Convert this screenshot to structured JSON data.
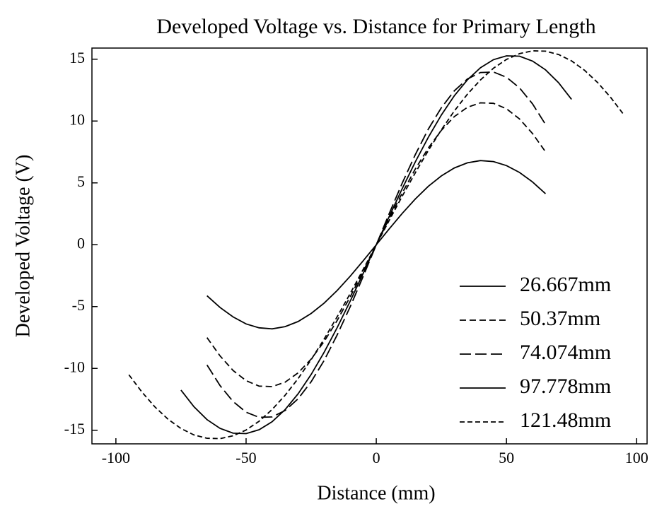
{
  "chart_data": {
    "type": "line",
    "title": "Developed Voltage vs. Distance for Primary Length",
    "xlabel": "Distance (mm)",
    "ylabel": "Developed Voltage (V)",
    "xlim": [
      -109.2,
      104
    ],
    "ylim": [
      -16.1,
      15.9
    ],
    "xticks": [
      -100,
      -50,
      0,
      50,
      100
    ],
    "yticks": [
      -15,
      -10,
      -5,
      0,
      5,
      10,
      15
    ],
    "grid": false,
    "legend": "lower right",
    "series": [
      {
        "name": "26.667mm",
        "color": "#000000",
        "dash": "none",
        "x": [
          -65,
          -60,
          -55,
          -50,
          -45,
          -40,
          -35,
          -30,
          -25,
          -20,
          -15,
          -10,
          -5,
          0,
          5,
          10,
          15,
          20,
          25,
          30,
          35,
          40,
          45,
          50,
          55,
          60,
          65
        ],
        "values": [
          -4.12,
          -5.08,
          -5.84,
          -6.4,
          -6.72,
          -6.8,
          -6.62,
          -6.21,
          -5.56,
          -4.72,
          -3.7,
          -2.54,
          -1.29,
          0,
          1.29,
          2.54,
          3.7,
          4.72,
          5.56,
          6.21,
          6.62,
          6.8,
          6.72,
          6.4,
          5.84,
          5.08,
          4.12
        ]
      },
      {
        "name": "50.37mm",
        "color": "#000000",
        "dash": "9 5",
        "x": [
          -65,
          -60,
          -55,
          -50,
          -45,
          -40,
          -35,
          -30,
          -25,
          -20,
          -15,
          -10,
          -5,
          0,
          5,
          10,
          15,
          20,
          25,
          30,
          35,
          40,
          45,
          50,
          55,
          60,
          65
        ],
        "values": [
          -7.51,
          -8.99,
          -10.17,
          -10.99,
          -11.43,
          -11.47,
          -11.11,
          -10.36,
          -9.25,
          -7.82,
          -6.12,
          -4.2,
          -2.14,
          0,
          2.14,
          4.2,
          6.12,
          7.82,
          9.25,
          10.36,
          11.11,
          11.47,
          11.43,
          10.99,
          10.17,
          8.99,
          7.51
        ]
      },
      {
        "name": "74.074mm",
        "color": "#000000",
        "dash": "16 6",
        "x": [
          -65,
          -60,
          -55,
          -50,
          -45,
          -40,
          -35,
          -30,
          -25,
          -20,
          -15,
          -10,
          -5,
          0,
          5,
          10,
          15,
          20,
          25,
          30,
          35,
          40,
          45,
          50,
          55,
          60,
          65
        ],
        "values": [
          -9.72,
          -11.39,
          -12.68,
          -13.54,
          -13.96,
          -13.92,
          -13.4,
          -12.45,
          -11.08,
          -9.35,
          -7.29,
          -5.0,
          -2.54,
          0,
          2.54,
          5.0,
          7.29,
          9.35,
          11.08,
          12.45,
          13.4,
          13.92,
          13.96,
          13.54,
          12.68,
          11.39,
          9.72
        ]
      },
      {
        "name": "97.778mm",
        "color": "#000000",
        "dash": "none",
        "x": [
          -75,
          -70,
          -65,
          -60,
          -55,
          -50,
          -45,
          -40,
          -35,
          -30,
          -25,
          -20,
          -15,
          -10,
          -5,
          0,
          5,
          10,
          15,
          20,
          25,
          30,
          35,
          40,
          45,
          50,
          55,
          60,
          65,
          70,
          75
        ],
        "values": [
          -11.75,
          -13.1,
          -14.14,
          -14.85,
          -15.24,
          -15.27,
          -14.96,
          -14.31,
          -13.33,
          -12.05,
          -10.49,
          -8.69,
          -6.7,
          -4.55,
          -2.3,
          0,
          2.3,
          4.55,
          6.7,
          8.69,
          10.49,
          12.05,
          13.33,
          14.31,
          14.96,
          15.27,
          15.24,
          14.85,
          14.14,
          13.1,
          11.75
        ]
      },
      {
        "name": "121.48mm",
        "color": "#000000",
        "dash": "7 4",
        "x": [
          -95,
          -90,
          -85,
          -80,
          -75,
          -70,
          -65,
          -60,
          -55,
          -50,
          -45,
          -40,
          -35,
          -30,
          -25,
          -20,
          -15,
          -10,
          -5,
          0,
          5,
          10,
          15,
          20,
          25,
          30,
          35,
          40,
          45,
          50,
          55,
          60,
          65,
          70,
          75,
          80,
          85,
          90,
          95
        ],
        "values": [
          -10.52,
          -11.91,
          -13.12,
          -14.1,
          -14.86,
          -15.38,
          -15.65,
          -15.68,
          -15.45,
          -14.98,
          -14.27,
          -13.32,
          -12.17,
          -10.82,
          -9.29,
          -7.62,
          -5.82,
          -3.94,
          -1.98,
          0,
          1.98,
          3.94,
          5.82,
          7.62,
          9.29,
          10.82,
          12.17,
          13.32,
          14.27,
          14.98,
          15.45,
          15.68,
          15.65,
          15.38,
          14.86,
          14.1,
          13.12,
          11.91,
          10.52
        ]
      }
    ]
  }
}
